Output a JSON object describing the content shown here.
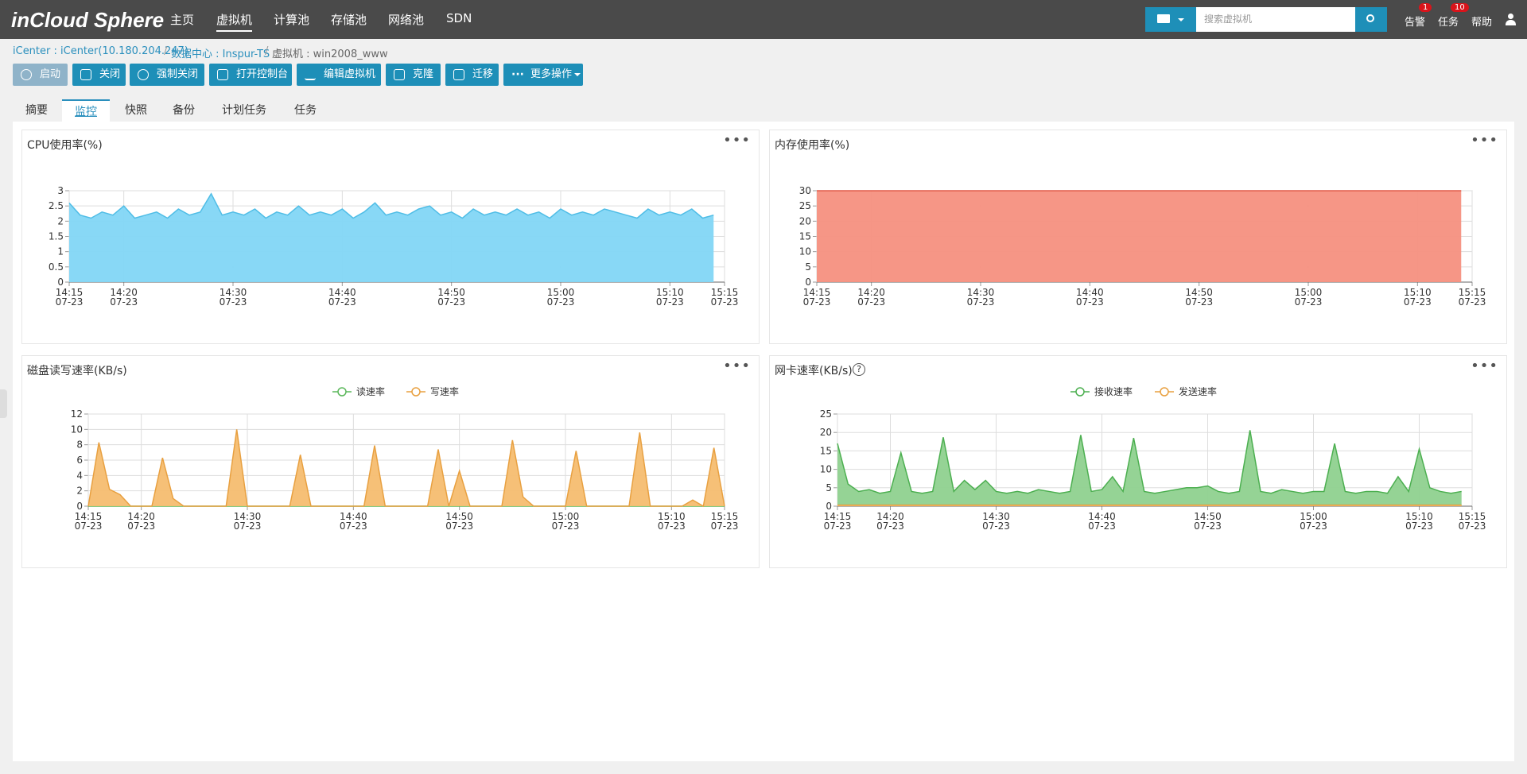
{
  "logo": "inCloud Sphere",
  "nav": [
    "主页",
    "虚拟机",
    "计算池",
    "存储池",
    "网络池",
    "SDN"
  ],
  "search_placeholder": "搜索虚拟机",
  "top_right": {
    "alarm": "告警",
    "alarm_badge": "1",
    "task": "任务",
    "task_badge": "10",
    "help": "帮助"
  },
  "breadcrumb": [
    "iCenter : iCenter(10.180.204.247)",
    "数据中心 : Inspur-TS",
    "虚拟机 : win2008_www"
  ],
  "buttons": [
    "启动",
    "关闭",
    "强制关闭",
    "打开控制台",
    "编辑虚拟机",
    "克隆",
    "迁移",
    "更多操作"
  ],
  "tabs": [
    "摘要",
    "监控",
    "快照",
    "备份",
    "计划任务",
    "任务"
  ],
  "chart_data": [
    {
      "type": "area",
      "title": "CPU使用率(%)",
      "x": [
        "14:15",
        "14:16",
        "14:17",
        "14:18",
        "14:19",
        "14:20",
        "14:21",
        "14:22",
        "14:23",
        "14:24",
        "14:25",
        "14:26",
        "14:27",
        "14:28",
        "14:29",
        "14:30",
        "14:31",
        "14:32",
        "14:33",
        "14:34",
        "14:35",
        "14:36",
        "14:37",
        "14:38",
        "14:39",
        "14:40",
        "14:41",
        "14:42",
        "14:43",
        "14:44",
        "14:45",
        "14:46",
        "14:47",
        "14:48",
        "14:49",
        "14:50",
        "14:51",
        "14:52",
        "14:53",
        "14:54",
        "14:55",
        "14:56",
        "14:57",
        "14:58",
        "14:59",
        "15:00",
        "15:01",
        "15:02",
        "15:03",
        "15:04",
        "15:05",
        "15:06",
        "15:07",
        "15:08",
        "15:09",
        "15:10",
        "15:11",
        "15:12",
        "15:13",
        "15:14",
        "15:15"
      ],
      "xticks": [
        {
          "value": "14:15",
          "date": "07-23"
        },
        {
          "value": "14:20",
          "date": "07-23"
        },
        {
          "value": "14:30",
          "date": "07-23"
        },
        {
          "value": "14:40",
          "date": "07-23"
        },
        {
          "value": "14:50",
          "date": "07-23"
        },
        {
          "value": "15:00",
          "date": "07-23"
        },
        {
          "value": "15:10",
          "date": "07-23"
        },
        {
          "value": "15:15",
          "date": "07-23"
        }
      ],
      "ylim": [
        0,
        3
      ],
      "yticks": [
        0,
        0.5,
        1,
        1.5,
        2,
        2.5,
        3
      ],
      "grid": true,
      "series": [
        {
          "color": "#4fbde6",
          "fill": "#82d6f5",
          "values": [
            2.6,
            2.2,
            2.1,
            2.3,
            2.2,
            2.5,
            2.1,
            2.2,
            2.3,
            2.1,
            2.4,
            2.2,
            2.3,
            2.9,
            2.2,
            2.3,
            2.2,
            2.4,
            2.1,
            2.3,
            2.2,
            2.5,
            2.2,
            2.3,
            2.2,
            2.4,
            2.1,
            2.3,
            2.6,
            2.2,
            2.3,
            2.2,
            2.4,
            2.5,
            2.2,
            2.3,
            2.1,
            2.4,
            2.2,
            2.3,
            2.2,
            2.4,
            2.2,
            2.3,
            2.1,
            2.4,
            2.2,
            2.3,
            2.2,
            2.4,
            2.3,
            2.2,
            2.1,
            2.4,
            2.2,
            2.3,
            2.2,
            2.4,
            2.1,
            2.2,
            null
          ]
        }
      ]
    },
    {
      "type": "area",
      "title": "内存使用率(%)",
      "x": [
        "14:15",
        "14:16",
        "14:17",
        "14:18",
        "14:19",
        "14:20",
        "14:21",
        "14:22",
        "14:23",
        "14:24",
        "14:25",
        "14:26",
        "14:27",
        "14:28",
        "14:29",
        "14:30",
        "14:31",
        "14:32",
        "14:33",
        "14:34",
        "14:35",
        "14:36",
        "14:37",
        "14:38",
        "14:39",
        "14:40",
        "14:41",
        "14:42",
        "14:43",
        "14:44",
        "14:45",
        "14:46",
        "14:47",
        "14:48",
        "14:49",
        "14:50",
        "14:51",
        "14:52",
        "14:53",
        "14:54",
        "14:55",
        "14:56",
        "14:57",
        "14:58",
        "14:59",
        "15:00",
        "15:01",
        "15:02",
        "15:03",
        "15:04",
        "15:05",
        "15:06",
        "15:07",
        "15:08",
        "15:09",
        "15:10",
        "15:11",
        "15:12",
        "15:13",
        "15:14",
        "15:15"
      ],
      "xticks": [
        {
          "value": "14:15",
          "date": "07-23"
        },
        {
          "value": "14:20",
          "date": "07-23"
        },
        {
          "value": "14:30",
          "date": "07-23"
        },
        {
          "value": "14:40",
          "date": "07-23"
        },
        {
          "value": "14:50",
          "date": "07-23"
        },
        {
          "value": "15:00",
          "date": "07-23"
        },
        {
          "value": "15:10",
          "date": "07-23"
        },
        {
          "value": "15:15",
          "date": "07-23"
        }
      ],
      "ylim": [
        0,
        30
      ],
      "yticks": [
        0,
        5,
        10,
        15,
        20,
        25,
        30
      ],
      "grid": true,
      "series": [
        {
          "color": "#e05a48",
          "fill": "#f5907f",
          "values": [
            30,
            30,
            30,
            30,
            30,
            30,
            30,
            30,
            30,
            30,
            30,
            30,
            30,
            30,
            30,
            30,
            30,
            30,
            30,
            30,
            30,
            30,
            30,
            30,
            30,
            30,
            30,
            30,
            30,
            30,
            30,
            30,
            30,
            30,
            30,
            30,
            30,
            30,
            30,
            30,
            30,
            30,
            30,
            30,
            30,
            30,
            30,
            30,
            30,
            30,
            30,
            30,
            30,
            30,
            30,
            30,
            30,
            30,
            30,
            30,
            null
          ]
        }
      ]
    },
    {
      "type": "area",
      "title": "磁盘读写速率(KB/s)",
      "legend": "top",
      "x": [
        "14:15",
        "14:16",
        "14:17",
        "14:18",
        "14:19",
        "14:20",
        "14:21",
        "14:22",
        "14:23",
        "14:24",
        "14:25",
        "14:26",
        "14:27",
        "14:28",
        "14:29",
        "14:30",
        "14:31",
        "14:32",
        "14:33",
        "14:34",
        "14:35",
        "14:36",
        "14:37",
        "14:38",
        "14:39",
        "14:40",
        "14:41",
        "14:42",
        "14:43",
        "14:44",
        "14:45",
        "14:46",
        "14:47",
        "14:48",
        "14:49",
        "14:50",
        "14:51",
        "14:52",
        "14:53",
        "14:54",
        "14:55",
        "14:56",
        "14:57",
        "14:58",
        "14:59",
        "15:00",
        "15:01",
        "15:02",
        "15:03",
        "15:04",
        "15:05",
        "15:06",
        "15:07",
        "15:08",
        "15:09",
        "15:10",
        "15:11",
        "15:12",
        "15:13",
        "15:14",
        "15:15"
      ],
      "xticks": [
        {
          "value": "14:15",
          "date": "07-23"
        },
        {
          "value": "14:20",
          "date": "07-23"
        },
        {
          "value": "14:30",
          "date": "07-23"
        },
        {
          "value": "14:40",
          "date": "07-23"
        },
        {
          "value": "14:50",
          "date": "07-23"
        },
        {
          "value": "15:00",
          "date": "07-23"
        },
        {
          "value": "15:10",
          "date": "07-23"
        },
        {
          "value": "15:15",
          "date": "07-23"
        }
      ],
      "ylim": [
        0,
        12
      ],
      "yticks": [
        0,
        2,
        4,
        6,
        8,
        10,
        12
      ],
      "grid": true,
      "series": [
        {
          "name": "读速率",
          "color": "#5cb85c",
          "fill": "#9bd89b",
          "values": [
            0,
            0,
            0,
            0,
            0,
            0,
            0,
            0,
            0,
            0,
            0,
            0,
            0,
            0,
            0,
            0,
            0,
            0,
            0,
            0,
            0,
            0,
            0,
            0,
            0,
            0,
            0,
            0,
            0,
            0,
            0,
            0,
            0,
            0,
            0,
            0,
            0,
            0,
            0,
            0,
            0,
            0,
            0,
            0,
            0,
            0,
            0,
            0,
            0,
            0,
            0,
            0,
            0,
            0,
            0,
            0,
            0,
            0,
            0,
            0,
            0
          ]
        },
        {
          "name": "写速率",
          "color": "#e8a040",
          "fill": "#f5bd70",
          "values": [
            0,
            8.3,
            2.2,
            1.5,
            0,
            0,
            0,
            6.3,
            1,
            0,
            0,
            0,
            0,
            0,
            10,
            0,
            0,
            0,
            0,
            0,
            6.7,
            0,
            0,
            0,
            0,
            0,
            0,
            7.9,
            0,
            0,
            0,
            0,
            0,
            7.4,
            0,
            4.6,
            0,
            0,
            0,
            0,
            8.6,
            1.2,
            0,
            0,
            0,
            0,
            7.2,
            0,
            0,
            0,
            0,
            0,
            9.6,
            0,
            0,
            0,
            0,
            0.8,
            0,
            7.6,
            0
          ]
        }
      ]
    },
    {
      "type": "area",
      "title": "网卡速率(KB/s)",
      "legend": "top",
      "x": [
        "14:15",
        "14:16",
        "14:17",
        "14:18",
        "14:19",
        "14:20",
        "14:21",
        "14:22",
        "14:23",
        "14:24",
        "14:25",
        "14:26",
        "14:27",
        "14:28",
        "14:29",
        "14:30",
        "14:31",
        "14:32",
        "14:33",
        "14:34",
        "14:35",
        "14:36",
        "14:37",
        "14:38",
        "14:39",
        "14:40",
        "14:41",
        "14:42",
        "14:43",
        "14:44",
        "14:45",
        "14:46",
        "14:47",
        "14:48",
        "14:49",
        "14:50",
        "14:51",
        "14:52",
        "14:53",
        "14:54",
        "14:55",
        "14:56",
        "14:57",
        "14:58",
        "14:59",
        "15:00",
        "15:01",
        "15:02",
        "15:03",
        "15:04",
        "15:05",
        "15:06",
        "15:07",
        "15:08",
        "15:09",
        "15:10",
        "15:11",
        "15:12",
        "15:13",
        "15:14",
        "15:15"
      ],
      "xticks": [
        {
          "value": "14:15",
          "date": "07-23"
        },
        {
          "value": "14:20",
          "date": "07-23"
        },
        {
          "value": "14:30",
          "date": "07-23"
        },
        {
          "value": "14:40",
          "date": "07-23"
        },
        {
          "value": "14:50",
          "date": "07-23"
        },
        {
          "value": "15:00",
          "date": "07-23"
        },
        {
          "value": "15:10",
          "date": "07-23"
        },
        {
          "value": "15:15",
          "date": "07-23"
        }
      ],
      "ylim": [
        0,
        25
      ],
      "yticks": [
        0,
        5,
        10,
        15,
        20,
        25
      ],
      "grid": true,
      "series": [
        {
          "name": "接收速率",
          "color": "#4caf50",
          "fill": "#8fd18f",
          "values": [
            17,
            6,
            4,
            4.5,
            3.5,
            4,
            14.5,
            4,
            3.5,
            4,
            18.7,
            4,
            7,
            4.5,
            7,
            4,
            3.5,
            4,
            3.5,
            4.5,
            4,
            3.5,
            4,
            19.3,
            4,
            4.5,
            8,
            4,
            18.5,
            4,
            3.5,
            4,
            4.5,
            5,
            5,
            5.5,
            4,
            3.5,
            4,
            20.6,
            4,
            3.5,
            4.5,
            4,
            3.5,
            4,
            4,
            17,
            4,
            3.5,
            4,
            4,
            3.5,
            8,
            4,
            15.5,
            5,
            4,
            3.5,
            4,
            null
          ]
        },
        {
          "name": "发送速率",
          "color": "#e8a040",
          "fill": "#f5bd70",
          "values": [
            0.3,
            0.3,
            0.3,
            0.3,
            0.3,
            0.3,
            0.3,
            0.3,
            0.3,
            0.3,
            0.3,
            0.3,
            0.3,
            0.3,
            0.3,
            0.3,
            0.3,
            0.3,
            0.3,
            0.3,
            0.3,
            0.3,
            0.3,
            0.3,
            0.3,
            0.3,
            0.3,
            0.3,
            0.3,
            0.3,
            0.3,
            0.3,
            0.3,
            0.3,
            0.3,
            0.3,
            0.3,
            0.3,
            0.3,
            0.3,
            0.3,
            0.3,
            0.3,
            0.3,
            0.3,
            0.3,
            0.3,
            0.3,
            0.3,
            0.3,
            0.3,
            0.3,
            0.3,
            0.3,
            0.3,
            0.3,
            0.3,
            0.3,
            0.3,
            0.3,
            null
          ]
        }
      ]
    }
  ]
}
